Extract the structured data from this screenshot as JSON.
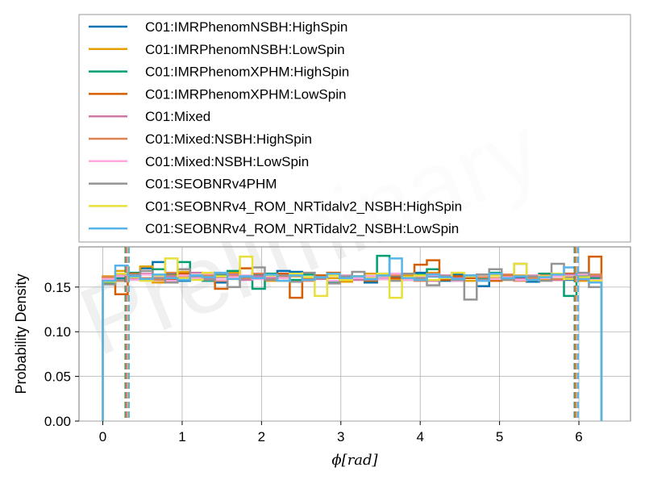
{
  "watermark": "Preliminary",
  "chart_data": {
    "type": "histogram",
    "xlabel": "ϕ[rad]",
    "ylabel": "Probability Density",
    "xlim": [
      -0.3,
      6.65
    ],
    "ylim": [
      0,
      0.195
    ],
    "xticks": [
      "0",
      "1",
      "2",
      "3",
      "4",
      "5",
      "6"
    ],
    "yticks": [
      "0.00",
      "0.05",
      "0.10",
      "0.15"
    ],
    "grid": true,
    "legend_position": "top",
    "bin_edges_range": [
      0,
      6.2832
    ],
    "n_bins": 40,
    "vlines": [
      0.31,
      5.97
    ],
    "series": [
      {
        "name": "C01:IMRPhenomNSBH:HighSpin",
        "color": "#0072b2",
        "values": [
          0.158,
          0.16,
          0.162,
          0.171,
          0.178,
          0.165,
          0.157,
          0.163,
          0.161,
          0.155,
          0.166,
          0.16,
          0.164,
          0.158,
          0.168,
          0.167,
          0.158,
          0.163,
          0.156,
          0.162,
          0.16,
          0.155,
          0.159,
          0.161,
          0.165,
          0.166,
          0.162,
          0.157,
          0.164,
          0.16,
          0.151,
          0.158,
          0.163,
          0.16,
          0.156,
          0.159,
          0.165,
          0.158,
          0.161,
          0.156
        ]
      },
      {
        "name": "C01:IMRPhenomNSBH:LowSpin",
        "color": "#e69f00",
        "values": [
          0.162,
          0.168,
          0.16,
          0.173,
          0.155,
          0.163,
          0.167,
          0.16,
          0.158,
          0.164,
          0.166,
          0.159,
          0.161,
          0.157,
          0.165,
          0.162,
          0.159,
          0.163,
          0.16,
          0.156,
          0.162,
          0.165,
          0.16,
          0.158,
          0.163,
          0.161,
          0.166,
          0.159,
          0.162,
          0.157,
          0.164,
          0.16,
          0.158,
          0.163,
          0.161,
          0.159,
          0.165,
          0.16,
          0.157,
          0.162
        ]
      },
      {
        "name": "C01:IMRPhenomXPHM:HighSpin",
        "color": "#009e73",
        "values": [
          0.155,
          0.161,
          0.166,
          0.158,
          0.17,
          0.162,
          0.178,
          0.16,
          0.157,
          0.163,
          0.168,
          0.159,
          0.148,
          0.165,
          0.16,
          0.158,
          0.164,
          0.162,
          0.156,
          0.163,
          0.161,
          0.159,
          0.185,
          0.16,
          0.158,
          0.164,
          0.17,
          0.162,
          0.157,
          0.163,
          0.159,
          0.166,
          0.16,
          0.158,
          0.162,
          0.165,
          0.159,
          0.14,
          0.163,
          0.16
        ]
      },
      {
        "name": "C01:IMRPhenomXPHM:LowSpin",
        "color": "#d55e00",
        "values": [
          0.16,
          0.142,
          0.165,
          0.159,
          0.163,
          0.158,
          0.165,
          0.162,
          0.16,
          0.148,
          0.164,
          0.171,
          0.162,
          0.158,
          0.165,
          0.138,
          0.16,
          0.163,
          0.166,
          0.159,
          0.161,
          0.157,
          0.163,
          0.16,
          0.165,
          0.175,
          0.18,
          0.158,
          0.162,
          0.16,
          0.164,
          0.157,
          0.162,
          0.159,
          0.163,
          0.16,
          0.158,
          0.165,
          0.16,
          0.184
        ]
      },
      {
        "name": "C01:Mixed",
        "color": "#cc79a7",
        "values": [
          0.157,
          0.163,
          0.16,
          0.165,
          0.158,
          0.162,
          0.16,
          0.166,
          0.159,
          0.161,
          0.164,
          0.158,
          0.162,
          0.16,
          0.157,
          0.163,
          0.161,
          0.159,
          0.165,
          0.16,
          0.158,
          0.162,
          0.16,
          0.164,
          0.159,
          0.161,
          0.157,
          0.163,
          0.16,
          0.162,
          0.158,
          0.165,
          0.16,
          0.159,
          0.163,
          0.161,
          0.158,
          0.164,
          0.16,
          0.162
        ]
      },
      {
        "name": "C01:Mixed:NSBH:HighSpin",
        "color": "#dd8452",
        "values": [
          0.161,
          0.157,
          0.164,
          0.16,
          0.158,
          0.166,
          0.161,
          0.159,
          0.163,
          0.157,
          0.162,
          0.16,
          0.165,
          0.158,
          0.161,
          0.163,
          0.157,
          0.16,
          0.164,
          0.158,
          0.162,
          0.16,
          0.159,
          0.163,
          0.161,
          0.157,
          0.165,
          0.16,
          0.158,
          0.162,
          0.161,
          0.159,
          0.164,
          0.157,
          0.16,
          0.163,
          0.159,
          0.161,
          0.158,
          0.164
        ]
      },
      {
        "name": "C01:Mixed:NSBH:LowSpin",
        "color": "#ffa6dc",
        "values": [
          0.159,
          0.162,
          0.158,
          0.164,
          0.161,
          0.157,
          0.163,
          0.16,
          0.165,
          0.158,
          0.161,
          0.163,
          0.159,
          0.162,
          0.16,
          0.164,
          0.158,
          0.161,
          0.157,
          0.163,
          0.16,
          0.162,
          0.159,
          0.165,
          0.158,
          0.161,
          0.163,
          0.16,
          0.157,
          0.162,
          0.164,
          0.159,
          0.161,
          0.158,
          0.163,
          0.16,
          0.162,
          0.159,
          0.164,
          0.158
        ]
      },
      {
        "name": "C01:SEOBNRv4PHM",
        "color": "#949494",
        "values": [
          0.153,
          0.158,
          0.164,
          0.168,
          0.16,
          0.155,
          0.17,
          0.162,
          0.158,
          0.165,
          0.15,
          0.161,
          0.172,
          0.158,
          0.163,
          0.156,
          0.166,
          0.16,
          0.154,
          0.162,
          0.167,
          0.158,
          0.163,
          0.157,
          0.165,
          0.16,
          0.152,
          0.162,
          0.158,
          0.136,
          0.164,
          0.17,
          0.158,
          0.176,
          0.162,
          0.157,
          0.176,
          0.16,
          0.166,
          0.15
        ]
      },
      {
        "name": "C01:SEOBNRv4_ROM_NRTidalv2_NSBH:HighSpin",
        "color": "#e8e03a",
        "values": [
          0.156,
          0.165,
          0.161,
          0.157,
          0.163,
          0.182,
          0.16,
          0.158,
          0.166,
          0.162,
          0.159,
          0.184,
          0.16,
          0.163,
          0.157,
          0.165,
          0.161,
          0.14,
          0.163,
          0.158,
          0.162,
          0.16,
          0.165,
          0.138,
          0.161,
          0.163,
          0.158,
          0.16,
          0.166,
          0.162,
          0.157,
          0.163,
          0.16,
          0.176,
          0.158,
          0.162,
          0.165,
          0.159,
          0.161,
          0.157
        ]
      },
      {
        "name": "C01:SEOBNRv4_ROM_NRTidalv2_NSBH:LowSpin",
        "color": "#56b4e9",
        "values": [
          0.157,
          0.174,
          0.162,
          0.159,
          0.164,
          0.16,
          0.158,
          0.163,
          0.161,
          0.166,
          0.159,
          0.162,
          0.16,
          0.164,
          0.157,
          0.163,
          0.158,
          0.161,
          0.165,
          0.16,
          0.162,
          0.159,
          0.163,
          0.182,
          0.16,
          0.158,
          0.164,
          0.161,
          0.159,
          0.163,
          0.157,
          0.165,
          0.16,
          0.162,
          0.158,
          0.161,
          0.164,
          0.172,
          0.159,
          0.155
        ]
      }
    ]
  }
}
